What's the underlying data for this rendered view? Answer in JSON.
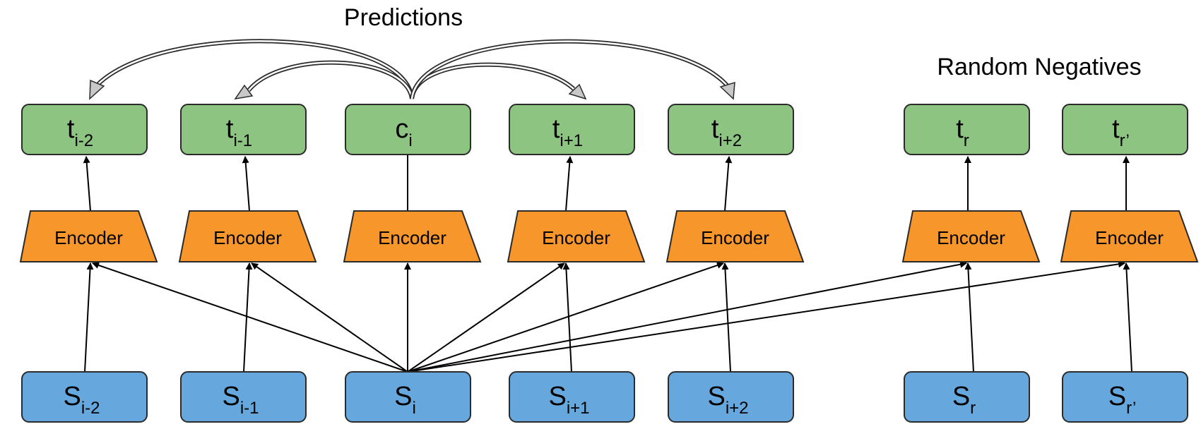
{
  "headings": {
    "predictions": "Predictions",
    "random_negatives": "Random Negatives"
  },
  "encoder_label": "Encoder",
  "columns": [
    {
      "key": "im2",
      "input": {
        "base": "S",
        "sub": "i-2"
      },
      "output": {
        "base": "t",
        "sub": "i-2"
      }
    },
    {
      "key": "im1",
      "input": {
        "base": "S",
        "sub": "i-1"
      },
      "output": {
        "base": "t",
        "sub": "i-1"
      }
    },
    {
      "key": "i",
      "input": {
        "base": "S",
        "sub": "i"
      },
      "output": {
        "base": "c",
        "sub": "i"
      }
    },
    {
      "key": "ip1",
      "input": {
        "base": "S",
        "sub": "i+1"
      },
      "output": {
        "base": "t",
        "sub": "i+1"
      }
    },
    {
      "key": "ip2",
      "input": {
        "base": "S",
        "sub": "i+2"
      },
      "output": {
        "base": "t",
        "sub": "i+2"
      }
    },
    {
      "key": "r",
      "input": {
        "base": "S",
        "sub": "r"
      },
      "output": {
        "base": "t",
        "sub": "r"
      }
    },
    {
      "key": "rp",
      "input": {
        "base": "S",
        "sub": "r’"
      },
      "output": {
        "base": "t",
        "sub": "r’"
      }
    }
  ],
  "colors": {
    "output_fill": "#8dc482",
    "input_fill": "#66a8dd",
    "encoder_fill": "#f6962b",
    "stroke": "#2b2b2b",
    "arrowhead_fill": "#c8c8c8"
  }
}
